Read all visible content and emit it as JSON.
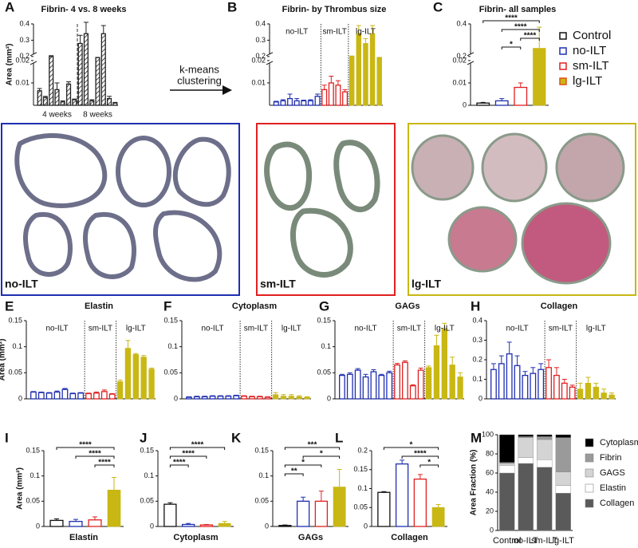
{
  "chart_data": [
    {
      "type": "bar",
      "panel": "A",
      "title": "Fibrin- 4 vs. 8 weeks",
      "ylabel": "Area (mm²)",
      "ylim": [
        0,
        0.4
      ],
      "ybreak": [
        0.02,
        0.2
      ],
      "yticks": [
        0.01,
        0.02,
        0.2,
        0.3,
        0.4
      ],
      "hatch": true,
      "series_label_position": "bottom",
      "series": [
        {
          "name": "4 weeks",
          "color": "#222222",
          "filled": false,
          "values": [
            0.0065,
            0.0035,
            0.2,
            0.007,
            0.0015,
            0.0095,
            0.0025
          ],
          "errors": [
            0.001,
            0.0005,
            0.005,
            0.003,
            0.0005,
            0.001,
            0.0003
          ]
        },
        {
          "name": "8 weeks",
          "color": "#222222",
          "filled": false,
          "values": [
            0.28,
            0.34,
            0.002,
            0.15,
            0.34,
            0.003,
            0.001
          ],
          "errors": [
            0.05,
            0.07,
            0.0005,
            0.01,
            0.05,
            0.001,
            0.0003
          ]
        }
      ]
    },
    {
      "type": "bar",
      "panel": "B",
      "title": "Fibrin- by Thrombus size",
      "ylim": [
        0,
        0.4
      ],
      "ybreak": [
        0.02,
        0.2
      ],
      "yticks": [
        0.01,
        0.02,
        0.2,
        0.3,
        0.4
      ],
      "series_label_position": "top",
      "series": [
        {
          "name": "no-ILT",
          "color": "#1f2fb0",
          "filled": false,
          "values": [
            0.0015,
            0.002,
            0.003,
            0.002,
            0.002,
            0.002,
            0.004
          ],
          "errors": [
            0.0003,
            0.0005,
            0.002,
            0.001,
            0.0003,
            0.0005,
            0.001
          ]
        },
        {
          "name": "sm-ILT",
          "color": "#e02020",
          "filled": false,
          "values": [
            0.007,
            0.01,
            0.009,
            0.006
          ],
          "errors": [
            0.002,
            0.003,
            0.002,
            0.001
          ]
        },
        {
          "name": "lg-ILT",
          "color": "#c9b714",
          "filled": true,
          "values": [
            0.2,
            0.34,
            0.28,
            0.34,
            0.15
          ],
          "errors": [
            0.003,
            0.05,
            0.03,
            0.05,
            0.01
          ]
        }
      ]
    },
    {
      "type": "bar",
      "panel": "C",
      "title": "Fibrin- all samples",
      "ylim": [
        0,
        0.4
      ],
      "ybreak": [
        0.02,
        0.2
      ],
      "yticks": [
        0,
        0.01,
        0.02,
        0.2,
        0.4
      ],
      "legend": "right",
      "categories": [
        "Control",
        "no-ILT",
        "sm-ILT",
        "lg-ILT"
      ],
      "colors": [
        "#111111",
        "#1f2fb0",
        "#e02020",
        "#c9b714"
      ],
      "filled": [
        false,
        false,
        false,
        true
      ],
      "values": [
        0.001,
        0.002,
        0.008,
        0.25
      ],
      "errors": [
        0.0003,
        0.001,
        0.002,
        0.13
      ],
      "significance": [
        {
          "from": 0,
          "to": 3,
          "label": "****"
        },
        {
          "from": 1,
          "to": 3,
          "label": "****"
        },
        {
          "from": 2,
          "to": 3,
          "label": "****"
        },
        {
          "from": 1,
          "to": 2,
          "label": "*"
        }
      ]
    },
    {
      "type": "bar",
      "panel": "E",
      "title": "Elastin",
      "ylabel": "Area (mm²)",
      "ylim": [
        0,
        0.15
      ],
      "yticks": [
        0,
        0.05,
        0.1,
        0.15
      ],
      "series_label_position": "top",
      "series": [
        {
          "name": "no-ILT",
          "color": "#1f2fb0",
          "filled": false,
          "values": [
            0.013,
            0.012,
            0.011,
            0.013,
            0.018,
            0.01,
            0.011
          ],
          "errors": [
            0.001,
            0.001,
            0.001,
            0.002,
            0.002,
            0.001,
            0.001
          ]
        },
        {
          "name": "sm-ILT",
          "color": "#e02020",
          "filled": false,
          "values": [
            0.01,
            0.011,
            0.014,
            0.009
          ],
          "errors": [
            0.001,
            0.002,
            0.003,
            0.001
          ]
        },
        {
          "name": "lg-ILT",
          "color": "#c9b714",
          "filled": true,
          "values": [
            0.033,
            0.097,
            0.085,
            0.08,
            0.057
          ],
          "errors": [
            0.003,
            0.015,
            0.002,
            0.003,
            0.002
          ]
        }
      ]
    },
    {
      "type": "bar",
      "panel": "F",
      "title": "Cytoplasm",
      "ylim": [
        0,
        0.15
      ],
      "yticks": [
        0,
        0.05,
        0.1,
        0.15
      ],
      "series_label_position": "top",
      "series": [
        {
          "name": "no-ILT",
          "color": "#1f2fb0",
          "filled": false,
          "values": [
            0.003,
            0.004,
            0.004,
            0.005,
            0.005,
            0.005,
            0.006
          ],
          "errors": [
            0.001,
            0.001,
            0.001,
            0.001,
            0.001,
            0.001,
            0.001
          ]
        },
        {
          "name": "sm-ILT",
          "color": "#e02020",
          "filled": false,
          "values": [
            0.005,
            0.004,
            0.004,
            0.003
          ],
          "errors": [
            0.001,
            0.001,
            0.001,
            0.001
          ]
        },
        {
          "name": "lg-ILT",
          "color": "#c9b714",
          "filled": true,
          "values": [
            0.008,
            0.005,
            0.005,
            0.004,
            0.003
          ],
          "errors": [
            0.004,
            0.003,
            0.003,
            0.002,
            0.001
          ]
        }
      ]
    },
    {
      "type": "bar",
      "panel": "G",
      "title": "GAGs",
      "ylim": [
        0,
        0.15
      ],
      "yticks": [
        0,
        0.05,
        0.1,
        0.15
      ],
      "series_label_position": "top",
      "series": [
        {
          "name": "no-ILT",
          "color": "#1f2fb0",
          "filled": false,
          "values": [
            0.045,
            0.047,
            0.055,
            0.042,
            0.052,
            0.045,
            0.05
          ],
          "errors": [
            0.002,
            0.003,
            0.003,
            0.005,
            0.004,
            0.002,
            0.003
          ]
        },
        {
          "name": "sm-ILT",
          "color": "#e02020",
          "filled": false,
          "values": [
            0.065,
            0.07,
            0.025,
            0.055
          ],
          "errors": [
            0.003,
            0.003,
            0.002,
            0.004
          ]
        },
        {
          "name": "lg-ILT",
          "color": "#c9b714",
          "filled": true,
          "values": [
            0.06,
            0.102,
            0.135,
            0.065,
            0.042
          ],
          "errors": [
            0.003,
            0.02,
            0.01,
            0.015,
            0.008
          ]
        }
      ]
    },
    {
      "type": "bar",
      "panel": "H",
      "title": "Collagen",
      "ylim": [
        0,
        0.4
      ],
      "yticks": [
        0,
        0.1,
        0.2,
        0.3,
        0.4
      ],
      "series_label_position": "top",
      "series": [
        {
          "name": "no-ILT",
          "color": "#1f2fb0",
          "filled": false,
          "values": [
            0.15,
            0.18,
            0.23,
            0.17,
            0.12,
            0.13,
            0.15
          ],
          "errors": [
            0.03,
            0.04,
            0.06,
            0.05,
            0.02,
            0.03,
            0.03
          ]
        },
        {
          "name": "sm-ILT",
          "color": "#e02020",
          "filled": false,
          "values": [
            0.16,
            0.12,
            0.08,
            0.06
          ],
          "errors": [
            0.04,
            0.04,
            0.02,
            0.01
          ]
        },
        {
          "name": "lg-ILT",
          "color": "#c9b714",
          "filled": true,
          "values": [
            0.05,
            0.08,
            0.06,
            0.03,
            0.02
          ],
          "errors": [
            0.03,
            0.03,
            0.02,
            0.02,
            0.01
          ]
        }
      ]
    },
    {
      "type": "bar",
      "panel": "I",
      "xlabel": "Elastin",
      "ylabel": "Area (mm²)",
      "ylim": [
        0,
        0.15
      ],
      "yticks": [
        0,
        0.05,
        0.1,
        0.15
      ],
      "colors": [
        "#111111",
        "#1f2fb0",
        "#e02020",
        "#c9b714"
      ],
      "filled": [
        false,
        false,
        false,
        true
      ],
      "values": [
        0.012,
        0.01,
        0.013,
        0.072
      ],
      "errors": [
        0.003,
        0.004,
        0.006,
        0.025
      ],
      "significance": [
        {
          "from": 0,
          "to": 3,
          "label": "****"
        },
        {
          "from": 1,
          "to": 3,
          "label": "****"
        },
        {
          "from": 2,
          "to": 3,
          "label": "****"
        }
      ]
    },
    {
      "type": "bar",
      "panel": "J",
      "xlabel": "Cytoplasm",
      "ylim": [
        0,
        0.15
      ],
      "yticks": [
        0,
        0.05,
        0.1,
        0.15
      ],
      "colors": [
        "#111111",
        "#1f2fb0",
        "#e02020",
        "#c9b714"
      ],
      "filled": [
        false,
        false,
        false,
        true
      ],
      "values": [
        0.044,
        0.004,
        0.003,
        0.006
      ],
      "errors": [
        0.003,
        0.002,
        0.001,
        0.004
      ],
      "significance": [
        {
          "from": 0,
          "to": 3,
          "label": "****"
        },
        {
          "from": 0,
          "to": 2,
          "label": "****"
        },
        {
          "from": 0,
          "to": 1,
          "label": "****"
        }
      ]
    },
    {
      "type": "bar",
      "panel": "K",
      "xlabel": "GAGs",
      "ylim": [
        0,
        0.15
      ],
      "yticks": [
        0,
        0.05,
        0.1,
        0.15
      ],
      "colors": [
        "#111111",
        "#1f2fb0",
        "#e02020",
        "#c9b714"
      ],
      "filled": [
        false,
        false,
        false,
        true
      ],
      "values": [
        0.002,
        0.05,
        0.05,
        0.078
      ],
      "errors": [
        0.001,
        0.008,
        0.02,
        0.035
      ],
      "significance": [
        {
          "from": 0,
          "to": 3,
          "label": "***"
        },
        {
          "from": 1,
          "to": 3,
          "label": "*"
        },
        {
          "from": 0,
          "to": 2,
          "label": "*"
        },
        {
          "from": 0,
          "to": 1,
          "label": "**"
        }
      ]
    },
    {
      "type": "bar",
      "panel": "L",
      "xlabel": "Collagen",
      "ylim": [
        0,
        0.2
      ],
      "yticks": [
        0,
        0.05,
        0.1,
        0.15,
        0.2
      ],
      "colors": [
        "#111111",
        "#1f2fb0",
        "#e02020",
        "#c9b714"
      ],
      "filled": [
        false,
        false,
        false,
        true
      ],
      "values": [
        0.09,
        0.165,
        0.125,
        0.05
      ],
      "errors": [
        0.002,
        0.01,
        0.012,
        0.008
      ],
      "significance": [
        {
          "from": 0,
          "to": 3,
          "label": "*"
        },
        {
          "from": 1,
          "to": 3,
          "label": "****"
        },
        {
          "from": 2,
          "to": 3,
          "label": "*"
        }
      ]
    },
    {
      "type": "stacked_bar",
      "panel": "M",
      "ylabel": "Area Fraction (%)",
      "ylim": [
        0,
        100
      ],
      "yticks": [
        0,
        20,
        40,
        60,
        80,
        100
      ],
      "legend": "right",
      "categories": [
        "Control",
        "no-ILT",
        "sm-ILT",
        "lg-ILT"
      ],
      "category_colors": [
        "#111111",
        "#1f2fb0",
        "#e02020",
        "#c9b714"
      ],
      "series": [
        {
          "name": "Collagen",
          "color": "#5a5a5a",
          "values": [
            60,
            70,
            66,
            39
          ]
        },
        {
          "name": "Elastin",
          "color": "#ffffff",
          "values": [
            8,
            6,
            8,
            8
          ]
        },
        {
          "name": "GAGS",
          "color": "#d4d4d4",
          "values": [
            2,
            21,
            21,
            14
          ]
        },
        {
          "name": "Fibrin",
          "color": "#9a9a9a",
          "values": [
            1,
            1,
            3,
            36
          ]
        },
        {
          "name": "Cytoplasm",
          "color": "#000000",
          "values": [
            29,
            2,
            2,
            3
          ]
        }
      ]
    }
  ],
  "clustering_arrow": [
    "k-means",
    "clustering"
  ],
  "histology": {
    "panel": "D",
    "groups": [
      "no-ILT",
      "sm-ILT",
      "lg-ILT"
    ]
  }
}
